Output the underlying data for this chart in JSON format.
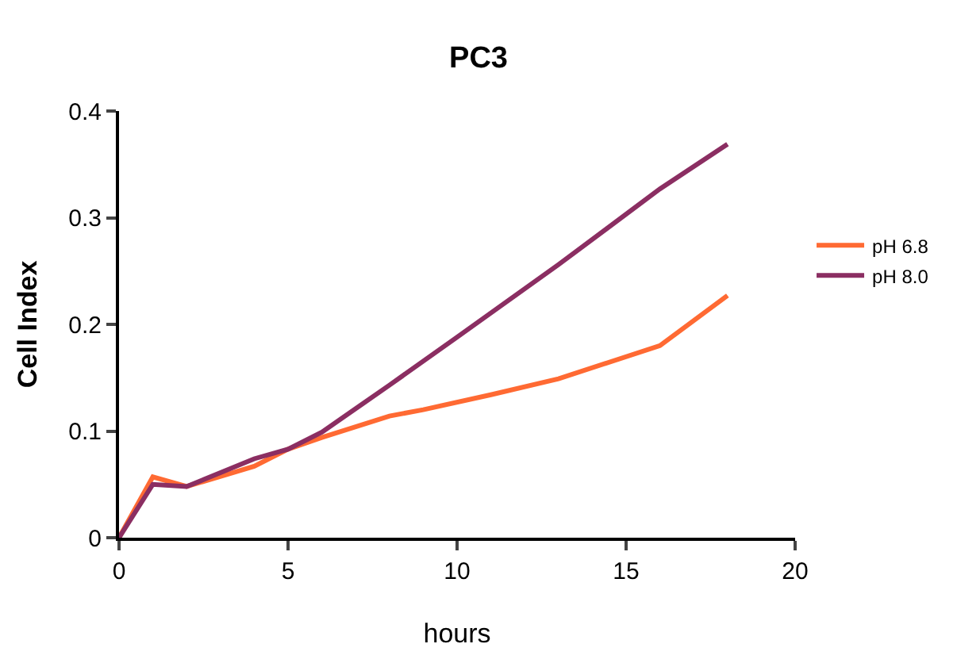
{
  "chart_data": {
    "type": "line",
    "title": "PC3",
    "xlabel": "hours",
    "ylabel": "Cell Index",
    "xlim": [
      0,
      20
    ],
    "xticks": [
      0,
      5,
      10,
      15,
      20
    ],
    "ylim": [
      0,
      0.4
    ],
    "yticks": [
      0,
      0.1,
      0.2,
      0.3,
      0.4
    ],
    "legend": "right",
    "marker": "none",
    "line_style": "solid",
    "series": [
      {
        "name": "pH 6.8",
        "color": "#ff6a33",
        "x": [
          0,
          1,
          2,
          4,
          5,
          6,
          8,
          9,
          11,
          13,
          16,
          18
        ],
        "values": [
          0,
          0.057,
          0.048,
          0.067,
          0.083,
          0.094,
          0.114,
          0.12,
          0.134,
          0.149,
          0.18,
          0.227
        ]
      },
      {
        "name": "pH 8.0",
        "color": "#8b2e62",
        "x": [
          0,
          1,
          2,
          3,
          4,
          5,
          6,
          8,
          10,
          13,
          16,
          18
        ],
        "values": [
          0,
          0.05,
          0.048,
          0.061,
          0.074,
          0.083,
          0.099,
          0.143,
          0.188,
          0.256,
          0.327,
          0.369
        ]
      }
    ]
  }
}
